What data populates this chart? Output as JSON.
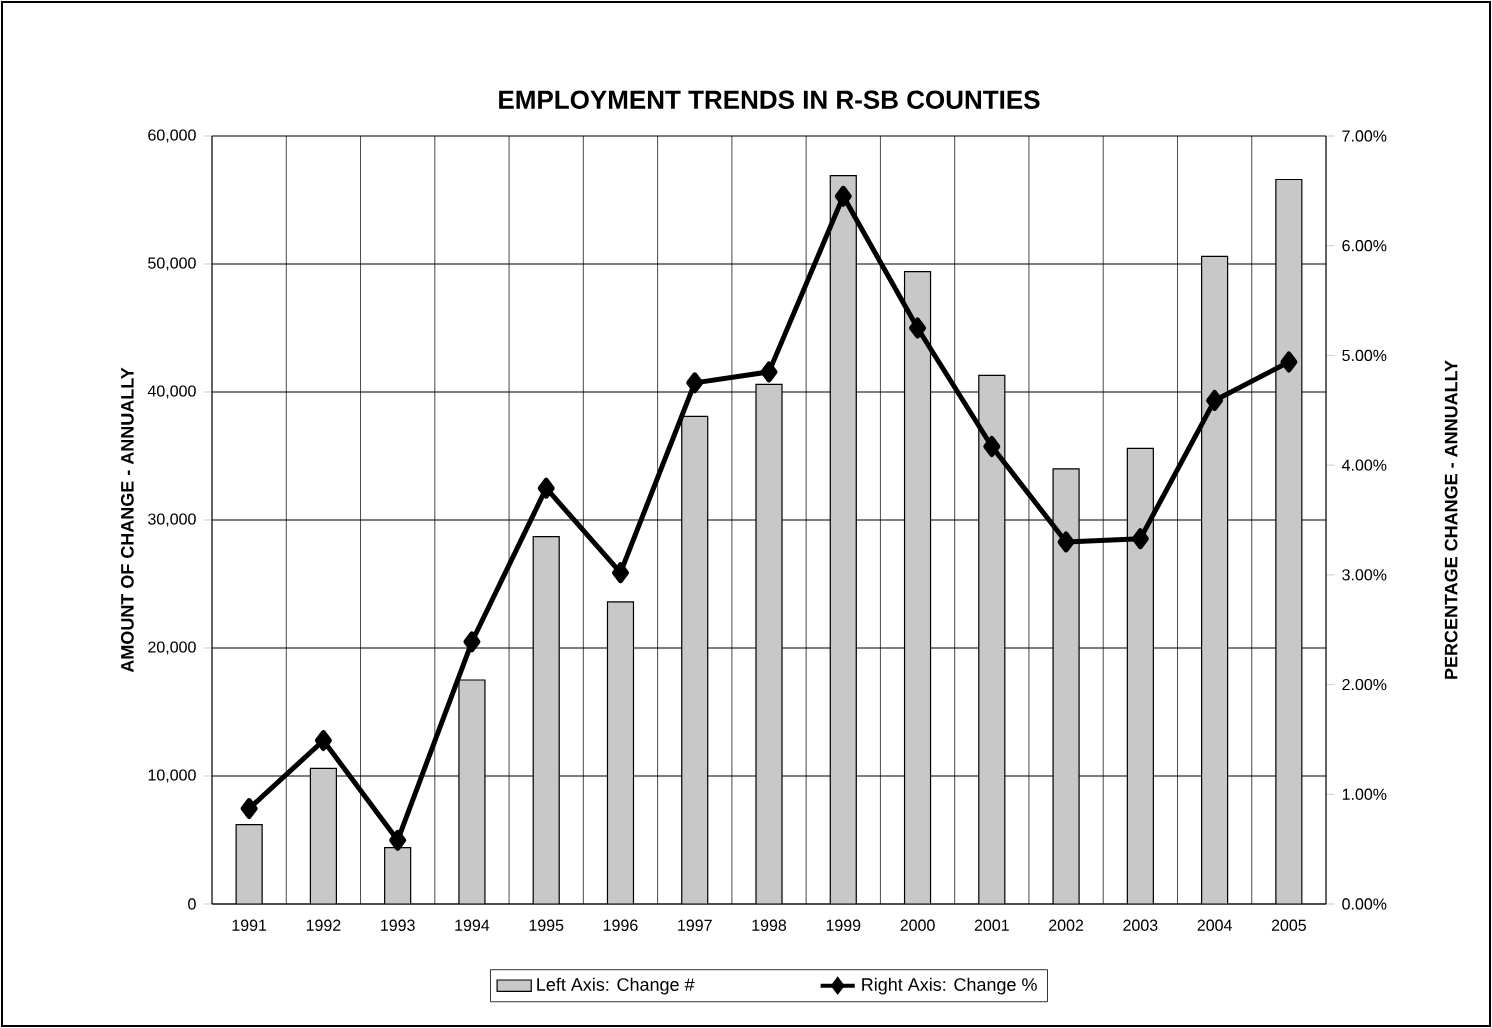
{
  "chart_data": {
    "type": "bar",
    "title": "EMPLOYMENT TRENDS IN R-SB COUNTIES",
    "ylabel": "AMOUNT OF CHANGE - ANNUALLY",
    "y2label": "PERCENTAGE CHANGE - ANNUALLY",
    "categories": [
      "1991",
      "1992",
      "1993",
      "1994",
      "1995",
      "1996",
      "1997",
      "1998",
      "1999",
      "2000",
      "2001",
      "2002",
      "2003",
      "2004",
      "2005"
    ],
    "series": [
      {
        "name": "Left Axis: Change #",
        "color": "#c8c8c8",
        "values": [
          6200,
          10600,
          4400,
          17500,
          28700,
          23600,
          38100,
          40600,
          56900,
          49400,
          41300,
          34000,
          35600,
          50600,
          56600
        ]
      },
      {
        "name": "Right Axis:  Change %",
        "type": "line",
        "axis": "y2",
        "color": "#000000",
        "marker": "diamond",
        "values": [
          0.87,
          1.49,
          0.58,
          2.39,
          3.79,
          3.02,
          4.75,
          4.85,
          6.45,
          5.25,
          4.17,
          3.3,
          3.33,
          4.59,
          4.94
        ]
      }
    ],
    "ylim": [
      0,
      60000
    ],
    "yticks": [
      {
        "value": 0,
        "label": "0"
      },
      {
        "value": 10000,
        "label": "10,000"
      },
      {
        "value": 20000,
        "label": "20,000"
      },
      {
        "value": 30000,
        "label": "30,000"
      },
      {
        "value": 40000,
        "label": "40,000"
      },
      {
        "value": 50000,
        "label": "50,000"
      },
      {
        "value": 60000,
        "label": "60,000"
      }
    ],
    "y2lim": [
      0,
      7
    ],
    "y2ticks": [
      {
        "value": 0,
        "label": "0.00%"
      },
      {
        "value": 1,
        "label": "1.00%"
      },
      {
        "value": 2,
        "label": "2.00%"
      },
      {
        "value": 3,
        "label": "3.00%"
      },
      {
        "value": 4,
        "label": "4.00%"
      },
      {
        "value": 5,
        "label": "5.00%"
      },
      {
        "value": 6,
        "label": "6.00%"
      },
      {
        "value": 7,
        "label": "7.00%"
      }
    ],
    "grid": true,
    "legend": "bottom"
  }
}
